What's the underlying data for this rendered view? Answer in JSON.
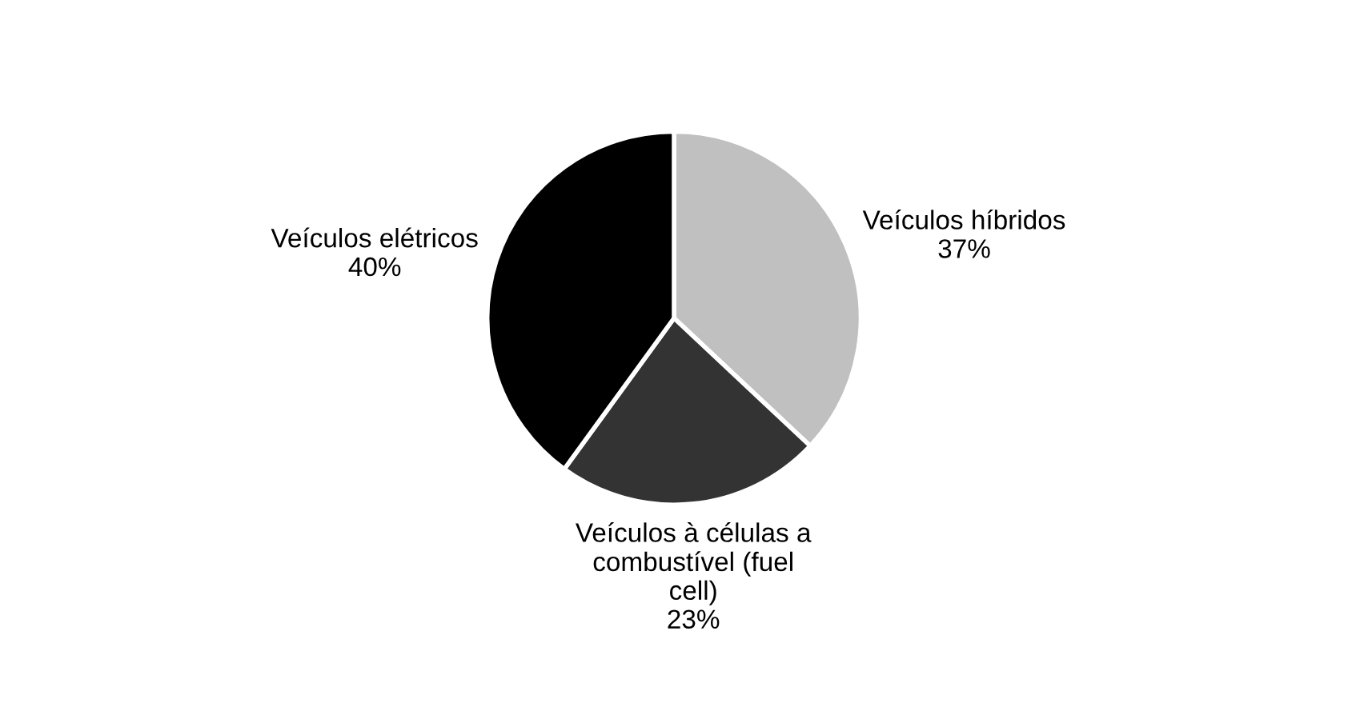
{
  "chart_data": {
    "type": "pie",
    "categories": [
      "Veículos híbridos",
      "Veículos à células a\ncombustível (fuel\ncell)",
      "Veículos elétricos"
    ],
    "values": [
      37,
      23,
      40
    ],
    "value_labels": [
      "37%",
      "23%",
      "40%"
    ],
    "colors": [
      "#c0c0c0",
      "#333333",
      "#000000"
    ]
  }
}
